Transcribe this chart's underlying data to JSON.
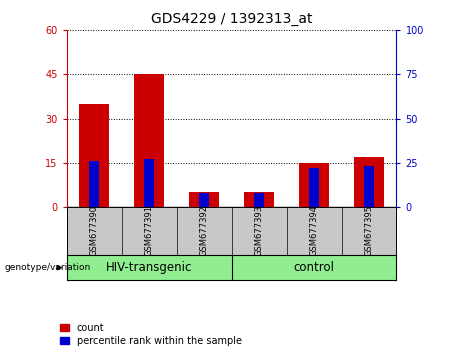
{
  "title": "GDS4229 / 1392313_at",
  "samples": [
    "GSM677390",
    "GSM677391",
    "GSM677392",
    "GSM677393",
    "GSM677394",
    "GSM677395"
  ],
  "count_values": [
    35,
    45,
    5,
    5,
    15,
    17
  ],
  "percentile_values": [
    15.6,
    16.2,
    4.8,
    4.8,
    13.2,
    13.8
  ],
  "ylim_left": [
    0,
    60
  ],
  "ylim_right": [
    0,
    100
  ],
  "yticks_left": [
    0,
    15,
    30,
    45,
    60
  ],
  "yticks_right": [
    0,
    25,
    50,
    75,
    100
  ],
  "group_labels": [
    "HIV-transgenic",
    "control"
  ],
  "group_color": "#90EE90",
  "bar_color_count": "#CC0000",
  "bar_color_percentile": "#0000CC",
  "bar_width": 0.55,
  "blue_bar_width": 0.18,
  "background_color": "#ffffff",
  "tick_area_bg": "#c8c8c8",
  "legend_count_label": "count",
  "legend_percentile_label": "percentile rank within the sample",
  "genotype_label": "genotype/variation",
  "title_fontsize": 10,
  "tick_fontsize": 7,
  "group_fontsize": 8.5,
  "sample_fontsize": 6,
  "legend_fontsize": 7
}
